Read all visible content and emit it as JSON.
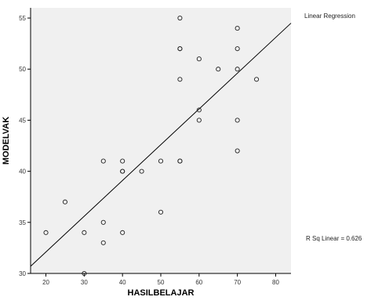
{
  "chart_data": {
    "type": "scatter",
    "xlabel": "HASILBELAJAR",
    "ylabel": "MODELVAK",
    "xlim": [
      16,
      84
    ],
    "ylim": [
      30,
      56
    ],
    "xticks": [
      20,
      30,
      40,
      50,
      60,
      70,
      80
    ],
    "yticks": [
      30,
      35,
      40,
      45,
      50,
      55
    ],
    "grid": false,
    "points": [
      {
        "x": 20,
        "y": 34
      },
      {
        "x": 25,
        "y": 37
      },
      {
        "x": 30,
        "y": 34
      },
      {
        "x": 30,
        "y": 30
      },
      {
        "x": 35,
        "y": 41
      },
      {
        "x": 35,
        "y": 35
      },
      {
        "x": 35,
        "y": 33
      },
      {
        "x": 40,
        "y": 41
      },
      {
        "x": 40,
        "y": 40
      },
      {
        "x": 40,
        "y": 40
      },
      {
        "x": 40,
        "y": 34
      },
      {
        "x": 45,
        "y": 40
      },
      {
        "x": 50,
        "y": 41
      },
      {
        "x": 50,
        "y": 36
      },
      {
        "x": 55,
        "y": 55
      },
      {
        "x": 55,
        "y": 52
      },
      {
        "x": 55,
        "y": 52
      },
      {
        "x": 55,
        "y": 49
      },
      {
        "x": 55,
        "y": 41
      },
      {
        "x": 55,
        "y": 41
      },
      {
        "x": 60,
        "y": 51
      },
      {
        "x": 60,
        "y": 46
      },
      {
        "x": 60,
        "y": 45
      },
      {
        "x": 65,
        "y": 50
      },
      {
        "x": 70,
        "y": 54
      },
      {
        "x": 70,
        "y": 52
      },
      {
        "x": 70,
        "y": 50
      },
      {
        "x": 70,
        "y": 45
      },
      {
        "x": 70,
        "y": 42
      },
      {
        "x": 75,
        "y": 49
      }
    ],
    "fit_line": {
      "label": "Linear Regression",
      "x1": 16,
      "y1": 30.7,
      "x2": 84,
      "y2": 54.5
    },
    "r_squared_label": "R Sq Linear = 0.626",
    "colors": {
      "plot_bg": "#f0f0f0",
      "axis": "#000000",
      "marker": "#222222",
      "line": "#000000"
    }
  }
}
